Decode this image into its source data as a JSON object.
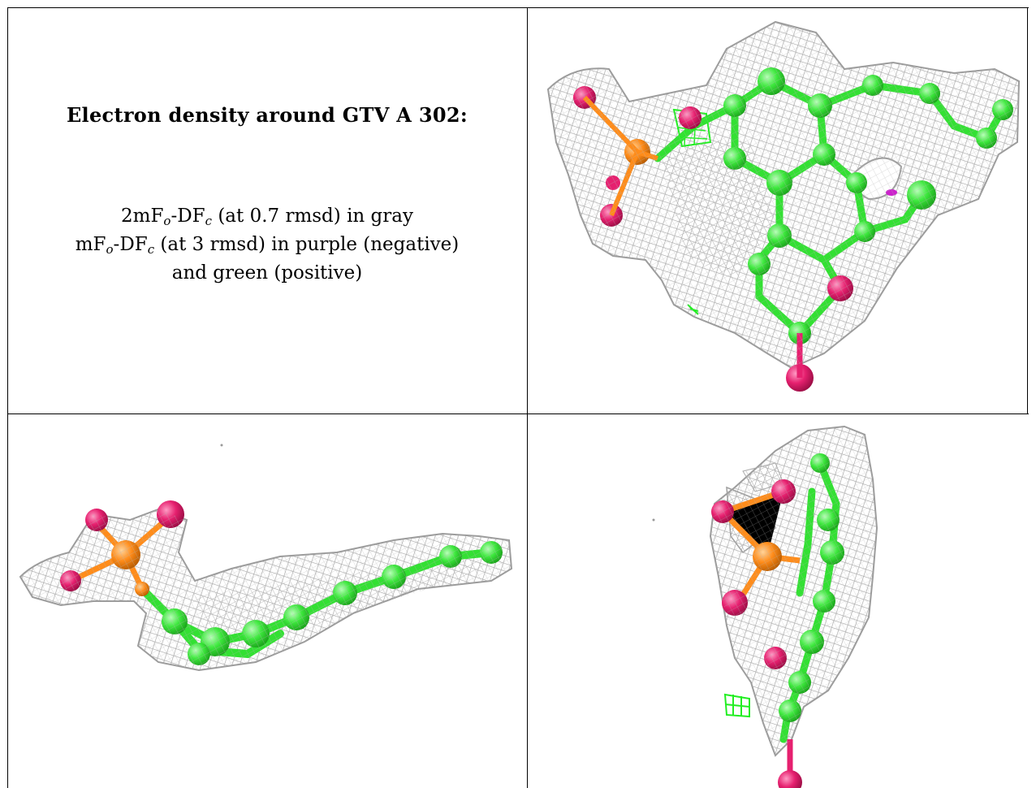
{
  "caption": {
    "title": "Electron density around GTV A 302:",
    "line1_pre": "2mF",
    "line1_sub1": "o",
    "line1_mid": "-DF",
    "line1_sub2": "c",
    "line1_post": " (at 0.7 rmsd) in gray",
    "line2_pre": "mF",
    "line2_sub1": "o",
    "line2_mid": "-DF",
    "line2_sub2": "c",
    "line2_post": " (at 3 rmsd) in purple (negative)",
    "line3": "and green (positive)"
  },
  "colors": {
    "mesh": "#a8a8a8",
    "carbon": "#33ee33",
    "oxygen": "#e6206f",
    "phosphorus": "#ff8c1a",
    "negative_density": "#cc22cc",
    "positive_density": "#22ee22",
    "border": "#000000"
  },
  "panels": [
    {
      "view": "top-right",
      "icon": "ligand-density-front-view"
    },
    {
      "view": "bottom-left",
      "icon": "ligand-density-side-view"
    },
    {
      "view": "bottom-right",
      "icon": "ligand-density-edge-view"
    }
  ]
}
